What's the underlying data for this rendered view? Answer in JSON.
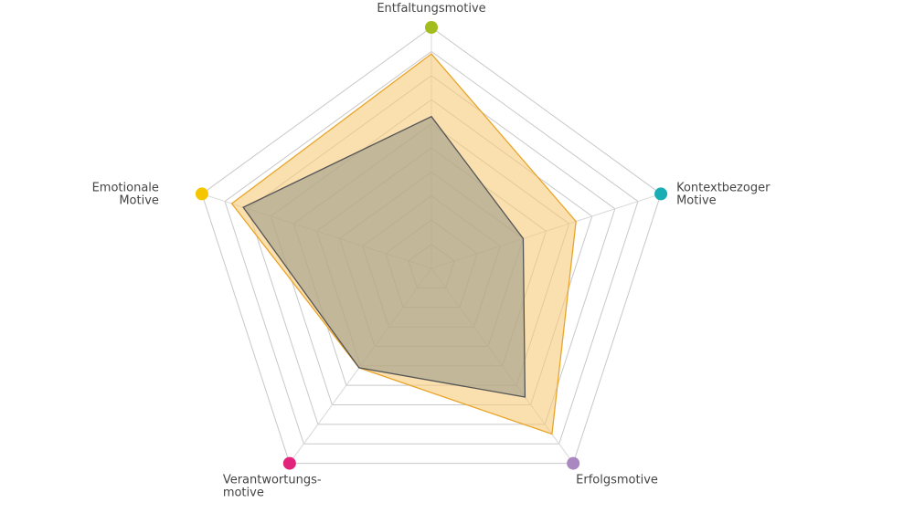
{
  "chart_data": {
    "type": "radar",
    "axes": [
      {
        "label_lines": [
          "Entfaltungsmotive"
        ],
        "color": "#a3bd1f"
      },
      {
        "label_lines": [
          "Kontextbezoger",
          "Motive"
        ],
        "color": "#1aaeb4"
      },
      {
        "label_lines": [
          "Erfolgsmotive"
        ],
        "color": "#a987c0"
      },
      {
        "label_lines": [
          "Verantwortungs-",
          "motive"
        ],
        "color": "#e2237b"
      },
      {
        "label_lines": [
          "Emotionale",
          "Motive"
        ],
        "color": "#f5c600"
      }
    ],
    "rlim": [
      0,
      10
    ],
    "grid_levels": [
      1,
      2,
      3,
      4,
      5,
      6,
      7,
      8,
      9,
      10
    ],
    "series": [
      {
        "values": [
          8.9,
          6.3,
          8.5,
          5.1,
          8.7
        ],
        "fill": "#f7c97a",
        "fill_opacity": 0.6,
        "stroke": "#e9a52a"
      },
      {
        "values": [
          6.3,
          4.0,
          6.6,
          5.1,
          8.2
        ],
        "fill": "#9c9c8a",
        "fill_opacity": 0.6,
        "stroke": "#555555"
      }
    ]
  }
}
